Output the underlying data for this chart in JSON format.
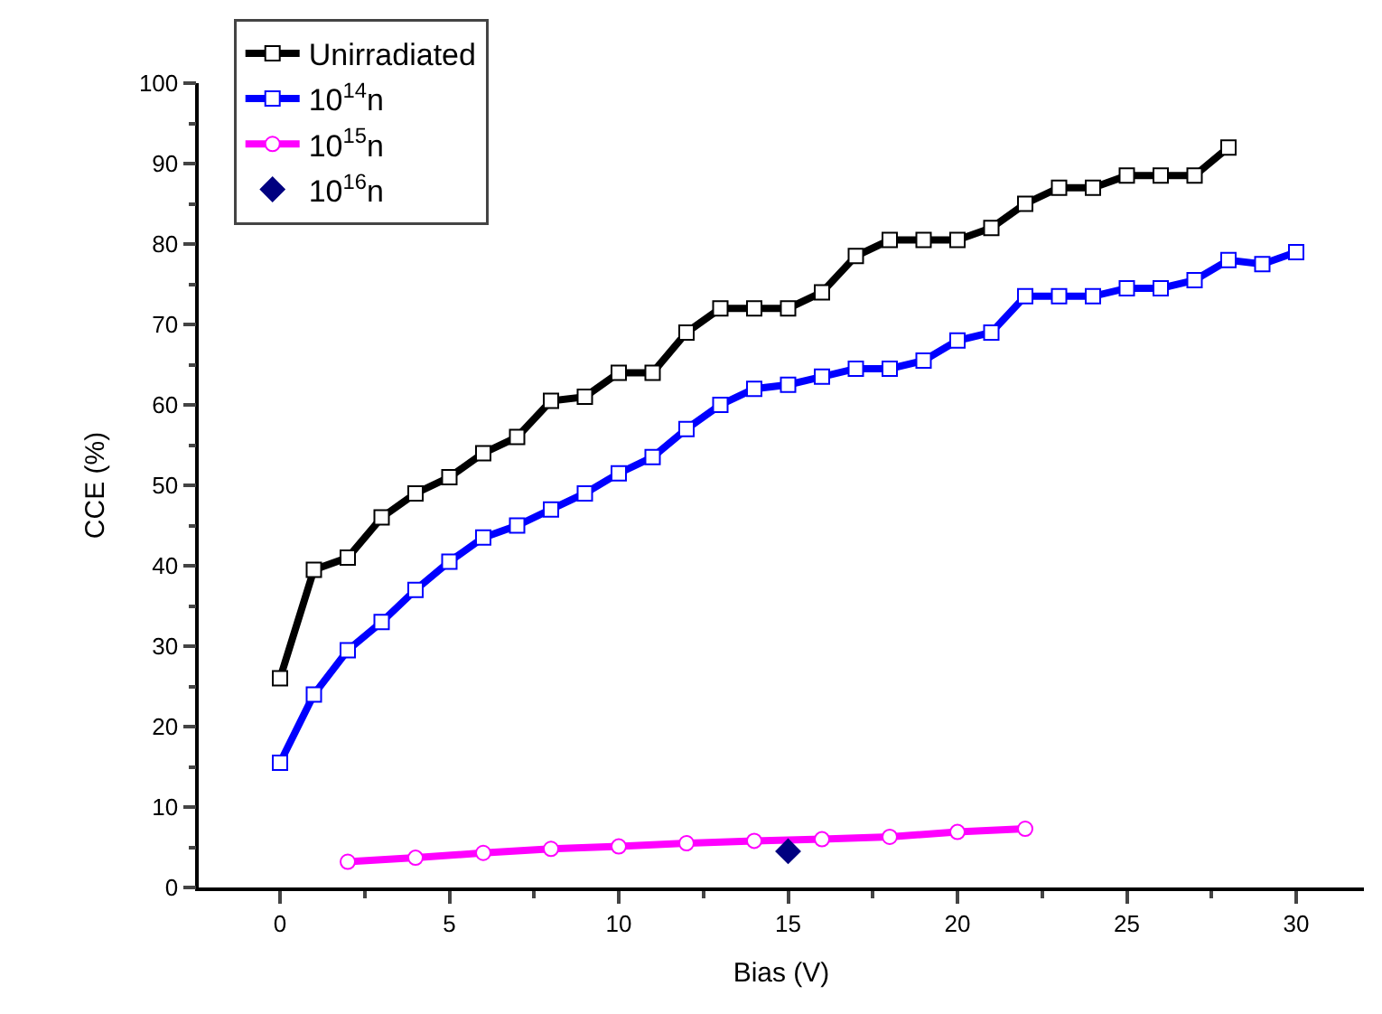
{
  "chart_data": {
    "type": "line",
    "xlabel": "Bias (V)",
    "ylabel": "CCE (%)",
    "xlim": [
      -2.4,
      32
    ],
    "xticks": [
      0,
      5,
      10,
      15,
      20,
      25,
      30
    ],
    "ylim": [
      0,
      100
    ],
    "yticks": [
      0,
      10,
      20,
      30,
      40,
      50,
      60,
      70,
      80,
      90,
      100
    ],
    "legend": "top left",
    "line_style": "solid",
    "series": [
      {
        "name": "Unirradiated",
        "color": "#000000",
        "marker": "square",
        "x": [
          0,
          1,
          2,
          3,
          4,
          5,
          6,
          7,
          8,
          9,
          10,
          11,
          12,
          13,
          14,
          15,
          16,
          17,
          18,
          19,
          20,
          21,
          22,
          23,
          24,
          25,
          26,
          27,
          28
        ],
        "values": [
          26,
          39.5,
          41,
          46,
          49,
          51,
          54,
          56,
          60.5,
          61,
          64,
          64,
          69,
          72,
          72,
          72,
          74,
          78.5,
          80.5,
          80.5,
          80.5,
          82,
          85,
          87,
          87,
          88.5,
          88.5,
          88.5,
          92
        ]
      },
      {
        "name": "10$^{14}$n",
        "color": "#0000ff",
        "marker": "square",
        "x": [
          0,
          1,
          2,
          3,
          4,
          5,
          6,
          7,
          8,
          9,
          10,
          11,
          12,
          13,
          14,
          15,
          16,
          17,
          18,
          19,
          20,
          21,
          22,
          23,
          24,
          25,
          26,
          27,
          28,
          29,
          30
        ],
        "values": [
          15.5,
          24,
          29.5,
          33,
          37,
          40.5,
          43.5,
          45,
          47,
          49,
          51.5,
          53.5,
          57,
          60,
          62,
          62.5,
          63.5,
          64.5,
          64.5,
          65.5,
          68,
          69,
          73.5,
          73.5,
          73.5,
          74.5,
          74.5,
          75.5,
          78,
          77.5,
          79
        ]
      },
      {
        "name": "10$^{15}$n",
        "color": "#ff00ff",
        "marker": "circle",
        "x": [
          2,
          4,
          6,
          8,
          10,
          12,
          14,
          16,
          18,
          20,
          22
        ],
        "values": [
          3.2,
          3.7,
          4.3,
          4.8,
          5.1,
          5.5,
          5.8,
          6,
          6.3,
          6.9,
          7.3
        ]
      },
      {
        "name": "10$^{16}$n",
        "color": "#000080",
        "type": "scatter",
        "marker": "diamond",
        "x": [
          15
        ],
        "values": [
          4.5
        ]
      }
    ]
  }
}
